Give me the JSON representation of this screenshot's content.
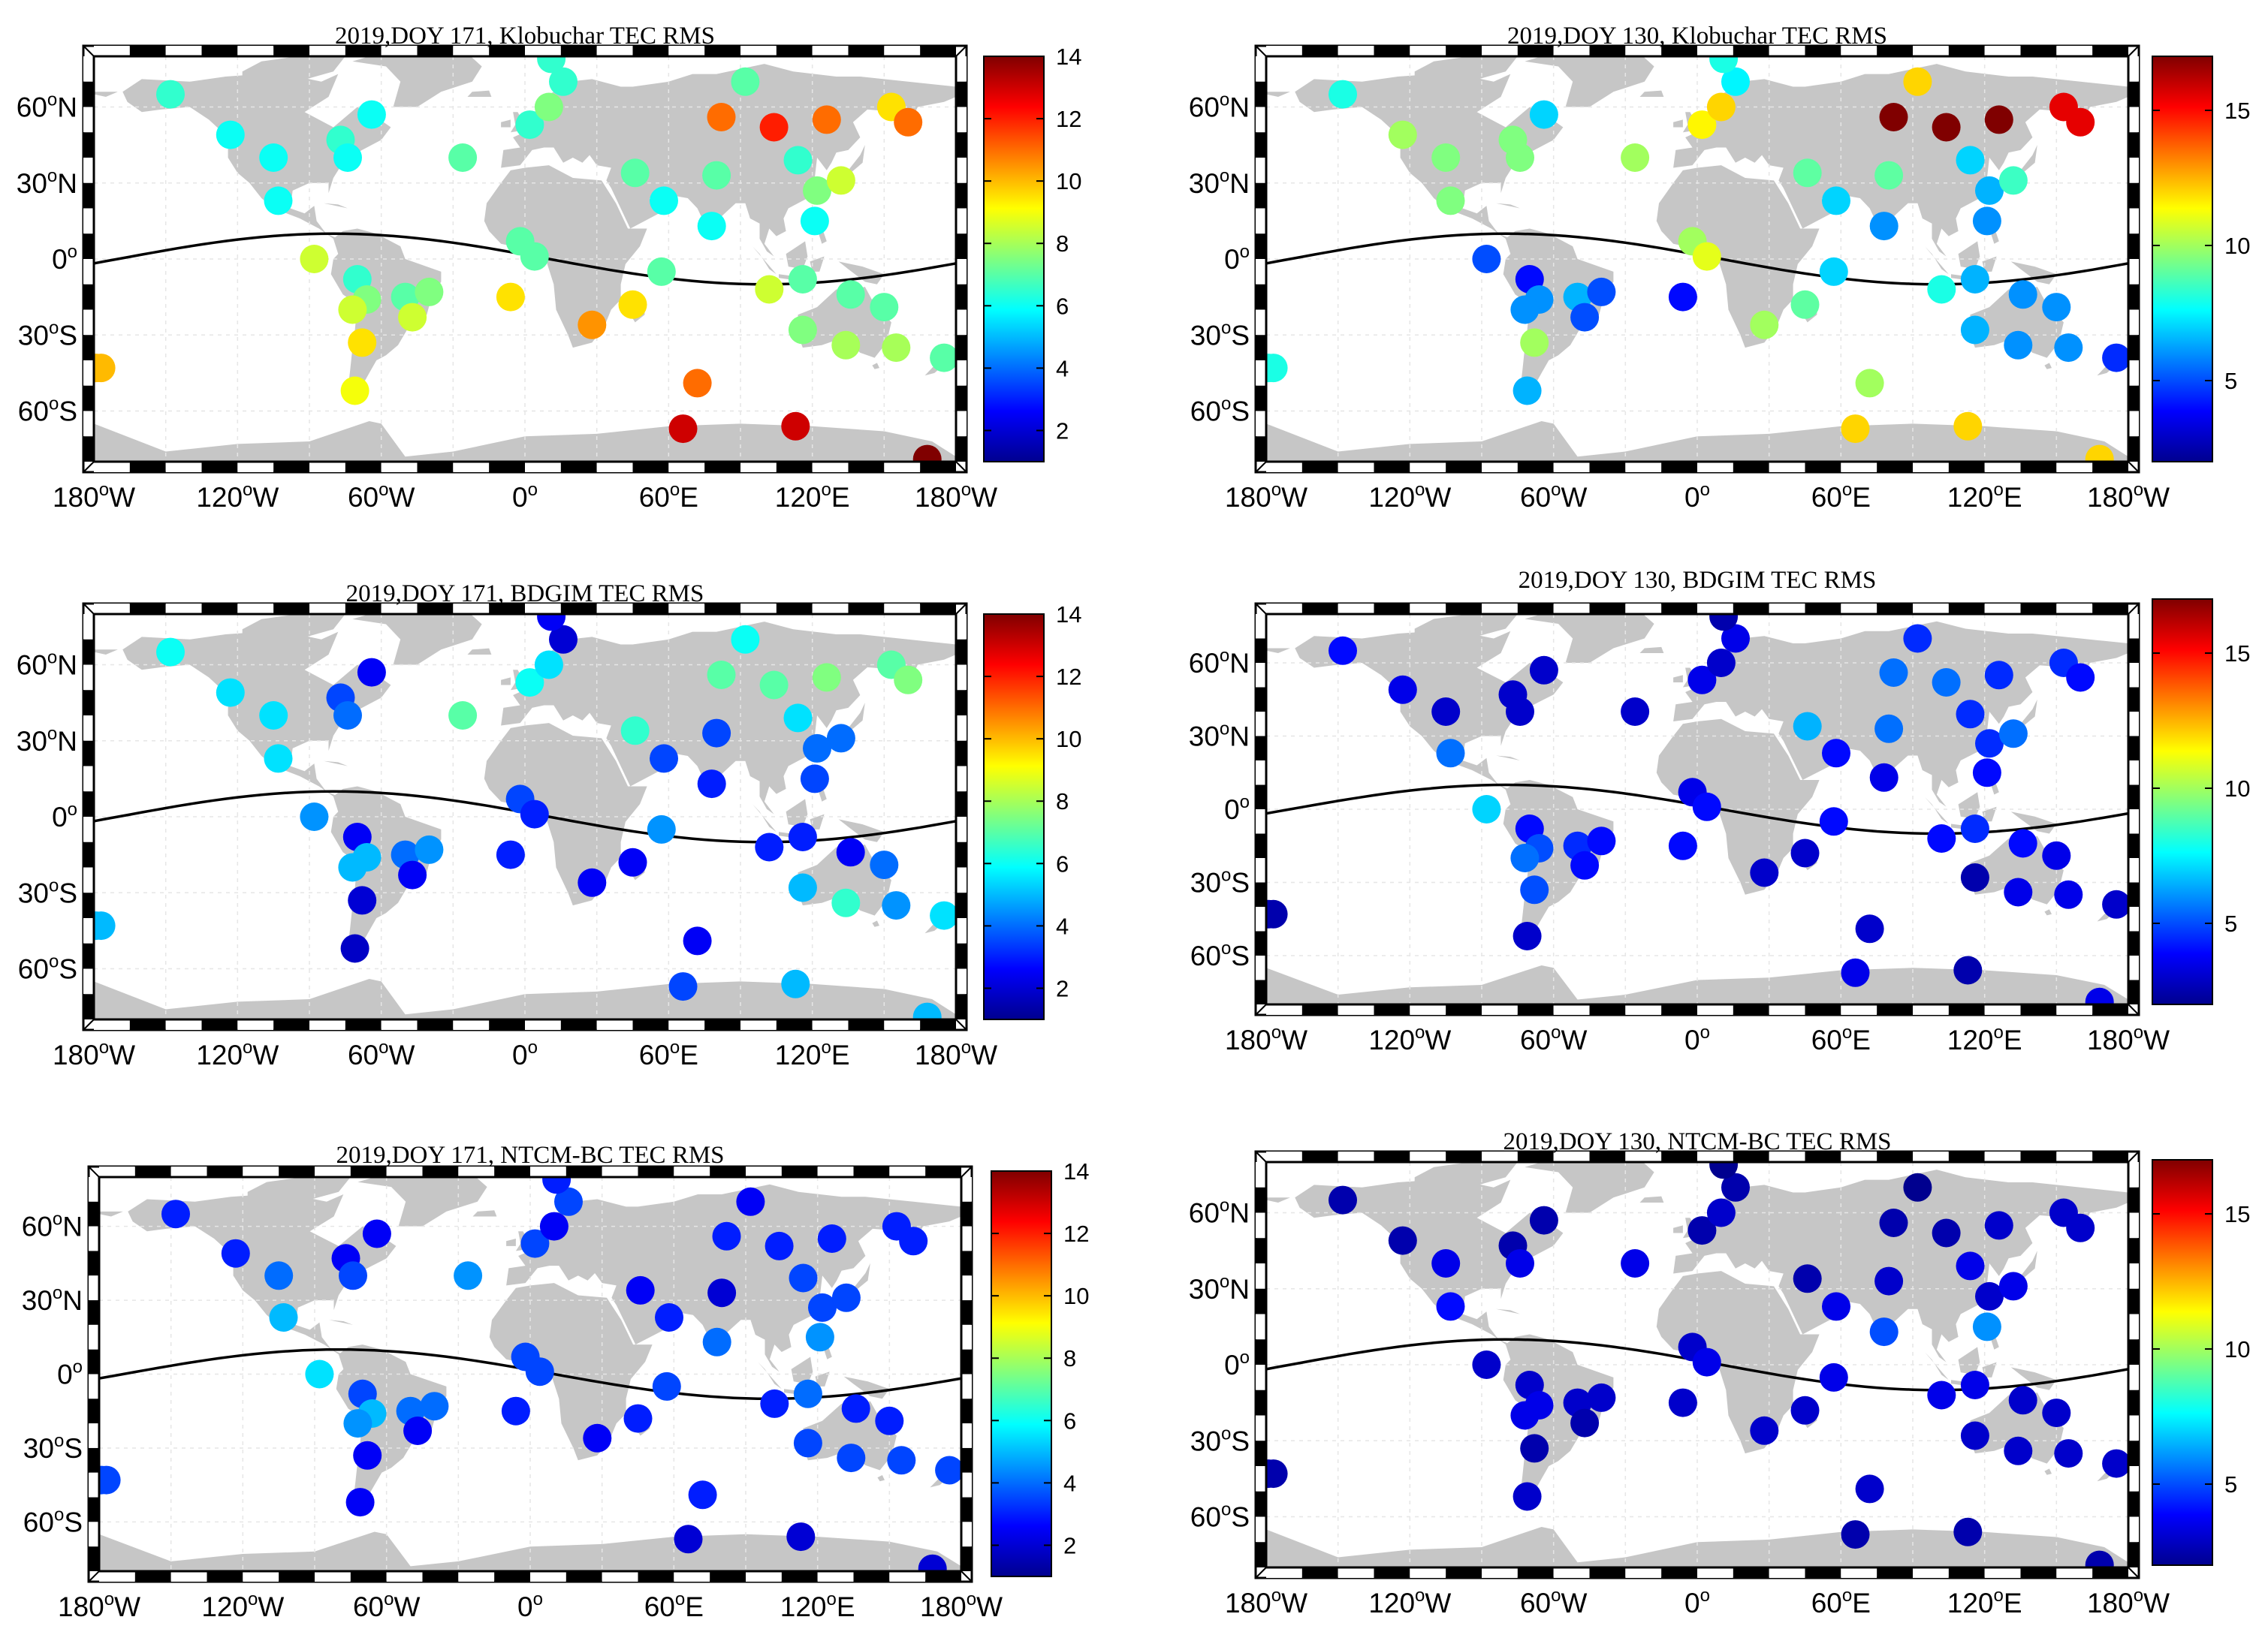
{
  "colormap": [
    "#00008f",
    "#0000ff",
    "#00ffff",
    "#ffff00",
    "#ff0000",
    "#800000"
  ],
  "axis": {
    "x_ticks": [
      {
        "label": "180",
        "dir": "W",
        "lon": -180
      },
      {
        "label": "120",
        "dir": "W",
        "lon": -120
      },
      {
        "label": "60",
        "dir": "W",
        "lon": -60
      },
      {
        "label": "0",
        "dir": "",
        "lon": 0
      },
      {
        "label": "60",
        "dir": "E",
        "lon": 60
      },
      {
        "label": "120",
        "dir": "E",
        "lon": 120
      },
      {
        "label": "180",
        "dir": "W",
        "lon": 180
      }
    ],
    "y_ticks": [
      {
        "label": "60",
        "dir": "N",
        "lat": 60
      },
      {
        "label": "30",
        "dir": "N",
        "lat": 30
      },
      {
        "label": "0",
        "dir": "",
        "lat": 0
      },
      {
        "label": "30",
        "dir": "S",
        "lat": -30
      },
      {
        "label": "60",
        "dir": "S",
        "lat": -60
      }
    ],
    "degree_symbol": "o"
  },
  "stations": [
    [
      -148,
      65
    ],
    [
      -123,
      49
    ],
    [
      -105,
      40
    ],
    [
      -103,
      23
    ],
    [
      -88,
      0
    ],
    [
      -77,
      47
    ],
    [
      -74,
      40
    ],
    [
      -64,
      57
    ],
    [
      -70,
      -8
    ],
    [
      -66,
      -16
    ],
    [
      -72,
      -20
    ],
    [
      -68,
      -33
    ],
    [
      -71,
      -52
    ],
    [
      -50,
      -15
    ],
    [
      -47,
      -23
    ],
    [
      -40,
      -13
    ],
    [
      -26,
      40
    ],
    [
      -6,
      -15
    ],
    [
      2,
      53
    ],
    [
      10,
      60
    ],
    [
      16,
      70
    ],
    [
      11,
      79
    ],
    [
      -2,
      7
    ],
    [
      4,
      1
    ],
    [
      28,
      -26
    ],
    [
      45,
      -18
    ],
    [
      46,
      34
    ],
    [
      58,
      23
    ],
    [
      57,
      -5
    ],
    [
      66,
      -67
    ],
    [
      72,
      -49
    ],
    [
      78,
      13
    ],
    [
      80,
      33
    ],
    [
      82,
      56
    ],
    [
      92,
      70
    ],
    [
      104,
      52
    ],
    [
      102,
      -12
    ],
    [
      114,
      39
    ],
    [
      116,
      -28
    ],
    [
      116,
      -8
    ],
    [
      121,
      15
    ],
    [
      122,
      27
    ],
    [
      126,
      55
    ],
    [
      132,
      31
    ],
    [
      136,
      -14
    ],
    [
      134,
      -34
    ],
    [
      113,
      -66
    ],
    [
      153,
      60
    ],
    [
      160,
      54
    ],
    [
      150,
      -19
    ],
    [
      155,
      -35
    ],
    [
      168,
      -79
    ],
    [
      175,
      -39
    ],
    [
      -177,
      -43
    ],
    [
      -179,
      -43
    ]
  ],
  "chart_data": [
    {
      "type": "scatter",
      "title": "2019,DOY 171, Klobuchar TEC RMS",
      "xlim": [
        -180,
        180
      ],
      "ylim": [
        -80,
        80
      ],
      "equator_line": true,
      "colorbar": {
        "min": 1,
        "max": 14,
        "ticks": [
          2,
          4,
          6,
          8,
          10,
          12,
          14
        ]
      },
      "values": [
        6.5,
        6,
        6,
        6,
        8.5,
        6.5,
        6,
        6,
        6.5,
        7.5,
        8.5,
        9.5,
        9,
        7,
        8.5,
        7.5,
        7,
        9.5,
        6.5,
        7.5,
        6.5,
        6.5,
        7,
        7,
        10.5,
        9.5,
        7,
        6,
        7,
        13,
        11,
        6,
        7,
        11,
        7,
        12,
        8.5,
        6.5,
        7.5,
        7,
        6,
        7.5,
        11,
        8.5,
        7,
        8,
        13,
        9.5,
        11,
        7,
        8,
        14,
        7,
        10,
        10
      ]
    },
    {
      "type": "scatter",
      "title": "2019,DOY 130, Klobuchar TEC RMS",
      "xlim": [
        -180,
        180
      ],
      "ylim": [
        -80,
        80
      ],
      "equator_line": true,
      "colorbar": {
        "min": 2,
        "max": 17,
        "ticks": [
          5,
          10,
          15
        ]
      },
      "values": [
        8,
        10,
        9.5,
        9.5,
        5,
        9.5,
        9.5,
        7,
        4,
        6,
        6,
        10,
        6.5,
        6.5,
        5,
        5,
        10,
        4,
        11.5,
        12,
        7.5,
        8,
        10,
        11,
        10,
        9,
        9,
        7,
        7,
        12,
        10,
        6,
        9,
        17,
        12,
        17,
        8,
        7,
        6.5,
        6.5,
        6,
        6.5,
        17,
        8.5,
        6,
        6,
        12,
        15.5,
        15.5,
        6,
        6,
        12,
        4.5,
        8,
        8
      ]
    },
    {
      "type": "scatter",
      "title": "2019,DOY 171, BDGIM TEC RMS",
      "xlim": [
        -180,
        180
      ],
      "ylim": [
        -80,
        80
      ],
      "equator_line": true,
      "colorbar": {
        "min": 1,
        "max": 14,
        "ticks": [
          2,
          4,
          6,
          8,
          10,
          12,
          14
        ]
      },
      "values": [
        6,
        5.5,
        5.5,
        5.5,
        4.5,
        3.5,
        4,
        2.5,
        2.5,
        5,
        5,
        2,
        1.8,
        4,
        2.5,
        4.5,
        7,
        3,
        6,
        5.5,
        2,
        2.5,
        3.5,
        3,
        2.5,
        2.5,
        6.5,
        3.5,
        4.5,
        3.5,
        2.5,
        3,
        3.5,
        7,
        6,
        7,
        3,
        5.5,
        5,
        3,
        3.5,
        4,
        7.5,
        4,
        2.5,
        6.5,
        5,
        7,
        7.5,
        4,
        4.5,
        5,
        5.5,
        5,
        5
      ]
    },
    {
      "type": "scatter",
      "title": "2019,DOY 130, BDGIM TEC RMS",
      "xlim": [
        -180,
        180
      ],
      "ylim": [
        -80,
        80
      ],
      "equator_line": true,
      "colorbar": {
        "min": 2,
        "max": 17,
        "ticks": [
          5,
          10,
          15
        ]
      },
      "values": [
        4,
        3.5,
        3,
        5.5,
        7,
        3,
        3,
        3,
        4,
        5,
        5.5,
        5,
        3,
        4.5,
        4,
        4,
        3,
        4,
        3.5,
        3,
        3.5,
        2.5,
        3.5,
        4,
        3,
        3,
        6.5,
        4,
        4,
        3.5,
        3,
        3.5,
        5.5,
        5.5,
        4.5,
        5.5,
        4,
        4.5,
        2.5,
        4.5,
        4,
        4.5,
        4.5,
        5.5,
        4,
        3.5,
        2.5,
        4.5,
        4,
        3.5,
        3.5,
        3.5,
        3,
        2.5,
        2.5
      ]
    },
    {
      "type": "scatter",
      "title": "2019,DOY 171, NTCM-BC TEC RMS",
      "xlim": [
        -180,
        180
      ],
      "ylim": [
        -80,
        80
      ],
      "equator_line": true,
      "colorbar": {
        "min": 1,
        "max": 14,
        "ticks": [
          2,
          4,
          6,
          8,
          10,
          12,
          14
        ]
      },
      "values": [
        3,
        3,
        4,
        5,
        5.5,
        2.5,
        3.5,
        2.5,
        3.5,
        5,
        4.5,
        2.5,
        2.5,
        4,
        2.5,
        4,
        4.5,
        3,
        3.5,
        2.5,
        3.5,
        3,
        3.5,
        3.5,
        2.5,
        3,
        2.5,
        3,
        3.5,
        2,
        3,
        4,
        2,
        3,
        2.5,
        3,
        3,
        3.5,
        3.5,
        4,
        4.5,
        3.5,
        3,
        3.5,
        3,
        3.5,
        2,
        3,
        3,
        3,
        3.5,
        2,
        3.5,
        3.5,
        3.5
      ]
    },
    {
      "type": "scatter",
      "title": "2019,DOY 130, NTCM-BC TEC RMS",
      "xlim": [
        -180,
        180
      ],
      "ylim": [
        -80,
        80
      ],
      "equator_line": true,
      "colorbar": {
        "min": 2,
        "max": 17,
        "ticks": [
          5,
          10,
          15
        ]
      },
      "values": [
        2.5,
        2.5,
        3.5,
        4,
        3,
        2.5,
        3.5,
        2.5,
        3,
        3.5,
        3.5,
        2.5,
        3,
        3,
        2.5,
        3,
        3.5,
        3,
        2.5,
        3,
        2.5,
        2,
        3,
        3.5,
        3,
        3,
        2.5,
        3.5,
        3.5,
        2.5,
        3,
        5,
        3,
        2.5,
        2,
        2.5,
        3.5,
        3.5,
        3,
        3.5,
        6,
        3,
        3,
        3.5,
        3,
        3,
        2.5,
        3,
        3,
        3,
        3,
        2.5,
        3,
        2.5,
        2.5
      ]
    }
  ]
}
